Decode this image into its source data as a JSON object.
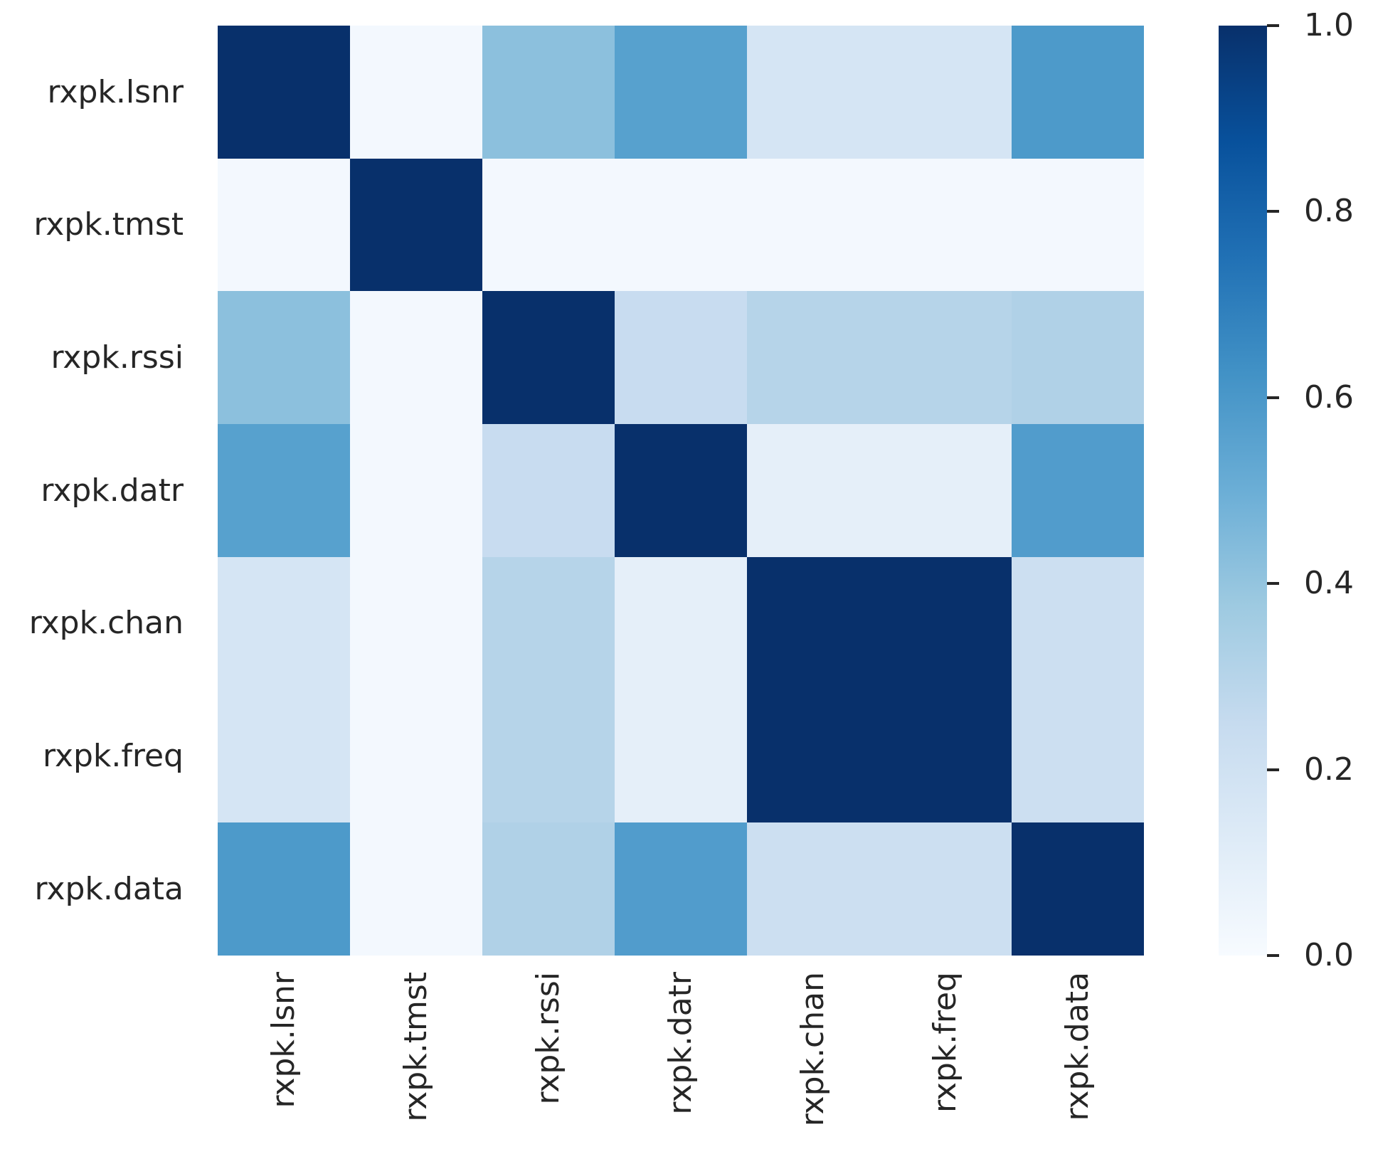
{
  "figure": {
    "background_color": "#ffffff",
    "text_color": "#262626",
    "tick_color": "#262626"
  },
  "chart_data": {
    "type": "heatmap",
    "title": "",
    "xlabel": "",
    "ylabel": "",
    "categories": [
      "rxpk.lsnr",
      "rxpk.tmst",
      "rxpk.rssi",
      "rxpk.datr",
      "rxpk.chan",
      "rxpk.freq",
      "rxpk.data"
    ],
    "matrix": [
      [
        1.0,
        0.02,
        0.42,
        0.56,
        0.17,
        0.17,
        0.59
      ],
      [
        0.02,
        1.0,
        0.02,
        0.02,
        0.02,
        0.02,
        0.02
      ],
      [
        0.42,
        0.02,
        1.0,
        0.24,
        0.3,
        0.3,
        0.32
      ],
      [
        0.56,
        0.02,
        0.24,
        1.0,
        0.09,
        0.09,
        0.58
      ],
      [
        0.17,
        0.02,
        0.3,
        0.09,
        1.0,
        1.0,
        0.22
      ],
      [
        0.17,
        0.02,
        0.3,
        0.09,
        1.0,
        1.0,
        0.22
      ],
      [
        0.59,
        0.02,
        0.32,
        0.58,
        0.22,
        0.22,
        1.0
      ]
    ],
    "vmin": 0.0,
    "vmax": 1.0,
    "colormap": "Blues",
    "colormap_stops": [
      [
        247,
        251,
        255
      ],
      [
        222,
        235,
        247
      ],
      [
        198,
        219,
        239
      ],
      [
        158,
        202,
        225
      ],
      [
        107,
        174,
        214
      ],
      [
        66,
        146,
        198
      ],
      [
        33,
        113,
        181
      ],
      [
        8,
        81,
        156
      ],
      [
        8,
        48,
        107
      ]
    ],
    "colorbar_ticks": [
      1.0,
      0.8,
      0.6,
      0.4,
      0.2,
      0.0
    ],
    "colorbar_tick_labels": [
      "1.0",
      "0.8",
      "0.6",
      "0.4",
      "0.2",
      "0.0"
    ],
    "colorbar_position": "right",
    "grid_lines": false,
    "x_tick_rotation_deg": 90
  }
}
